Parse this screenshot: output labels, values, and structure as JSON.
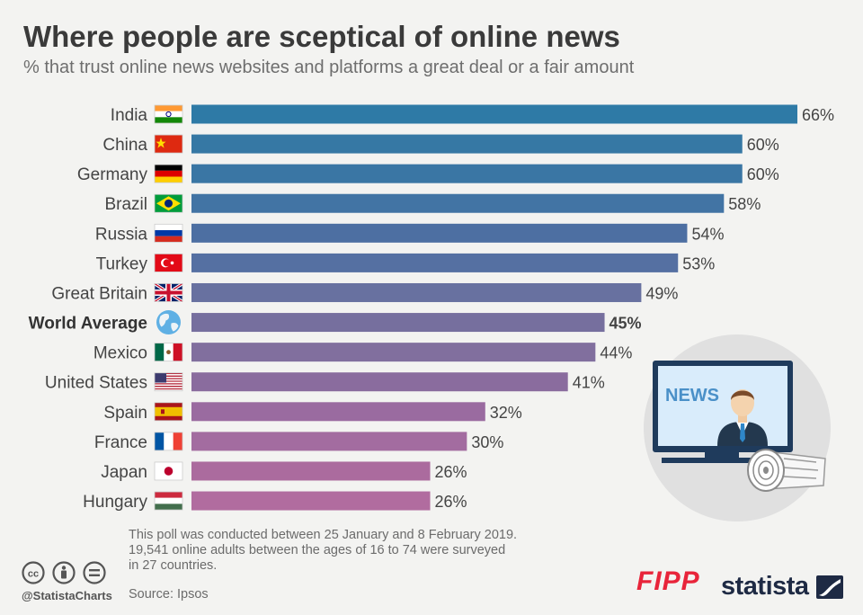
{
  "header": {
    "title": "Where people are sceptical of online news",
    "subtitle": "% that trust online news websites and platforms a great deal or a fair amount"
  },
  "chart_data": {
    "type": "bar",
    "orientation": "horizontal",
    "title": "Where people are sceptical of online news",
    "subtitle": "% that trust online news websites and platforms a great deal or a fair amount",
    "categories": [
      "India",
      "China",
      "Germany",
      "Brazil",
      "Russia",
      "Turkey",
      "Great Britain",
      "World Average",
      "Mexico",
      "United States",
      "Spain",
      "France",
      "Japan",
      "Hungary"
    ],
    "values": [
      66,
      60,
      60,
      58,
      54,
      53,
      49,
      45,
      44,
      41,
      32,
      30,
      26,
      26
    ],
    "value_suffix": "%",
    "highlight": "World Average",
    "flags": [
      "india-flag-icon",
      "china-flag-icon",
      "germany-flag-icon",
      "brazil-flag-icon",
      "russia-flag-icon",
      "turkey-flag-icon",
      "great-britain-flag-icon",
      "globe-icon",
      "mexico-flag-icon",
      "united-states-flag-icon",
      "spain-flag-icon",
      "france-flag-icon",
      "japan-flag-icon",
      "hungary-flag-icon"
    ],
    "colors": [
      "#2e7aa6",
      "#3678a4",
      "#3a76a4",
      "#4274a4",
      "#4d6fa2",
      "#5570a2",
      "#6871a0",
      "#766f9e",
      "#816f9e",
      "#8a6c9e",
      "#9a6ba0",
      "#a36ca0",
      "#ab6b9e",
      "#b16c9f"
    ],
    "xlim": [
      0,
      66
    ],
    "xlabel": "",
    "ylabel": "",
    "grid": false
  },
  "illustration": {
    "tv_label": "NEWS"
  },
  "footer": {
    "note_lines": [
      "This poll was conducted between 25 January and 8 February 2019.",
      "19,541 online adults between the ages of 16 to 74 were surveyed",
      "in 27 countries."
    ],
    "source": "Source: Ipsos",
    "handle": "@StatistaCharts",
    "fipp_logo": "FIPP",
    "statista_logo": "statista"
  },
  "colors": {
    "background": "#f3f3f1",
    "title": "#3a3a3a",
    "fipp": "#e8243a",
    "statista": "#1e2a44"
  }
}
